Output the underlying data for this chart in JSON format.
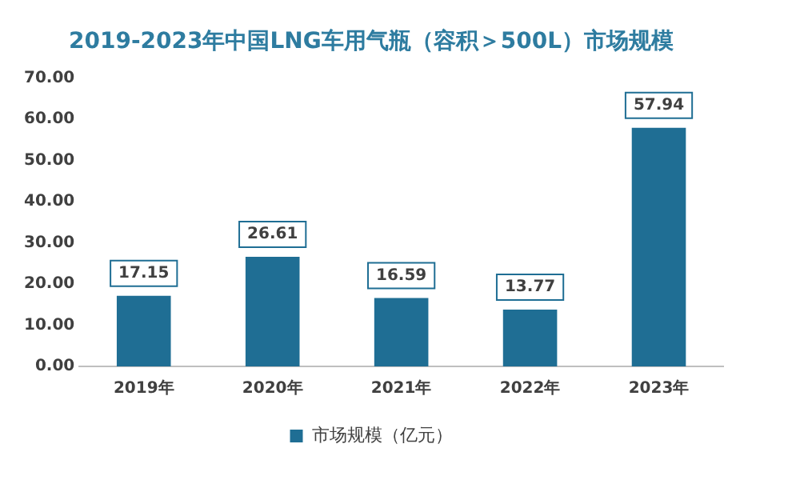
{
  "chart_data": {
    "type": "bar",
    "title": "2019-2023年中国LNG车用气瓶（容积＞500L）市场规模",
    "categories": [
      "2019年",
      "2020年",
      "2021年",
      "2022年",
      "2023年"
    ],
    "series": [
      {
        "name": "市场规模（亿元）",
        "color": "#1f6e94",
        "values": [
          17.15,
          26.61,
          16.59,
          13.77,
          57.94
        ]
      }
    ],
    "ylim": [
      0,
      70
    ],
    "yticks": [
      {
        "value": 0,
        "label": "0.00"
      },
      {
        "value": 10,
        "label": "10.00"
      },
      {
        "value": 20,
        "label": "20.00"
      },
      {
        "value": 30,
        "label": "30.00"
      },
      {
        "value": 40,
        "label": "40.00"
      },
      {
        "value": 50,
        "label": "50.00"
      },
      {
        "value": 60,
        "label": "60.00"
      },
      {
        "value": 70,
        "label": "70.00"
      }
    ],
    "grid": false,
    "legend": "bottom",
    "data_labels": true
  }
}
